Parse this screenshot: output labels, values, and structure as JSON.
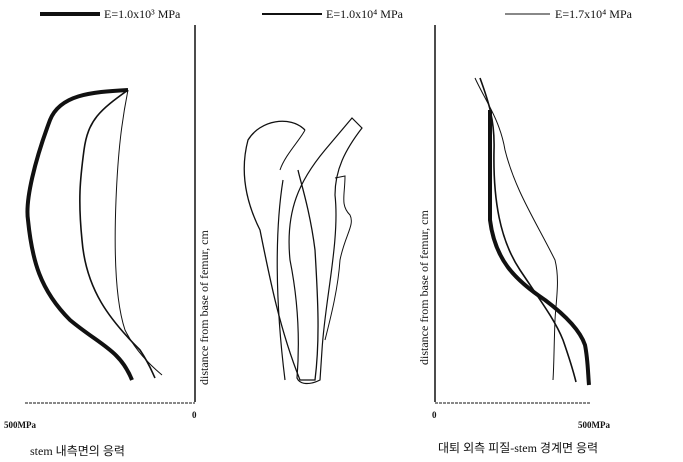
{
  "legend": [
    "E=1.0x10³ MPa",
    "E=1.0x10⁴ MPa",
    "E=1.7x10⁴ MPa"
  ],
  "left_panel": {
    "axis_label": "distance from base of femur, cm",
    "x_left_label": "500MPa",
    "x_right_label": "0",
    "caption": "stem 내측면의 응력"
  },
  "right_panel": {
    "axis_label": "distance from base of femur, cm",
    "x_left_label": "0",
    "x_right_label": "500MPa",
    "caption": "대퇴 외측 피질-stem 경계면 응력"
  }
}
